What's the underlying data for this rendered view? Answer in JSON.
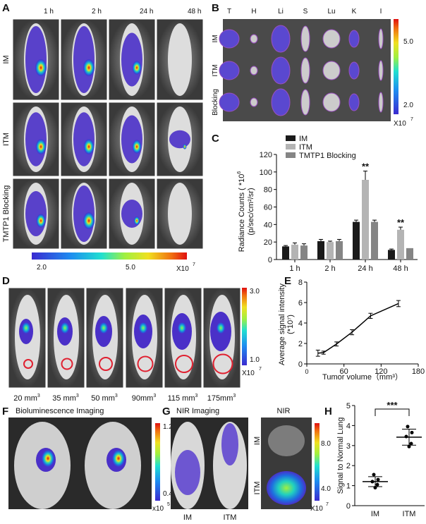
{
  "panels": {
    "A": {
      "label": "A",
      "columns": [
        "1 h",
        "2 h",
        "24 h",
        "48 h"
      ],
      "rows": [
        "IM",
        "ITM",
        "TMTP1 Blocking"
      ],
      "colorbar": {
        "min": "2.0",
        "max": "5.0",
        "unit": "X10",
        "exp": "7"
      }
    },
    "B": {
      "label": "B",
      "columns": [
        "T",
        "H",
        "Li",
        "S",
        "Lu",
        "K",
        "I"
      ],
      "rows": [
        "IM",
        "ITM",
        "Blocking"
      ],
      "colorbar": {
        "max": "5.0",
        "min": "2.0",
        "unit": "X10",
        "exp": "7"
      }
    },
    "D": {
      "label": "D",
      "volumes": [
        "20 mm",
        "35 mm",
        "50 mm",
        "90mm",
        "115 mm",
        "175mm"
      ],
      "exp": "3",
      "colorbar": {
        "max": "3.0",
        "min": "1.0",
        "unit": "X10",
        "exp": "7"
      }
    },
    "F": {
      "label": "F",
      "title": "Bioluminescence Imaging",
      "colorbar": {
        "max": "1.2",
        "min": "0.4",
        "unit": "x10",
        "exp": "5"
      }
    },
    "G": {
      "label": "G",
      "title": "NIR Imaging",
      "labels": [
        "IM",
        "ITM"
      ],
      "nir_title": "NIR",
      "nir_rows": [
        "IM",
        "ITM"
      ],
      "colorbar": {
        "max": "8.0",
        "min": "4.0",
        "unit": "X10",
        "exp": "7"
      }
    }
  },
  "colors": {
    "IM": "#1a1a1a",
    "ITM": "#b4b4b4",
    "TMTP1 Blocking": "#858585"
  },
  "chart_data": [
    {
      "panel": "C",
      "type": "bar",
      "label": "C",
      "ylabel": "Radiance Counts ( *10^6 (p/sec/cm²/sr)",
      "ylabel_line1": "Radiance Counts ( *10",
      "ylabel_exp": "6",
      "ylabel_line2": "(p/sec/cm²/sr)",
      "categories": [
        "1 h",
        "2 h",
        "24 h",
        "48 h"
      ],
      "ylim": [
        0,
        120
      ],
      "yticks": [
        0,
        20,
        40,
        60,
        80,
        100,
        120
      ],
      "series": [
        {
          "name": "IM",
          "values": [
            15,
            21,
            43,
            11
          ],
          "errors": [
            1,
            2,
            2,
            1
          ]
        },
        {
          "name": "ITM",
          "values": [
            17,
            20,
            91,
            34
          ],
          "errors": [
            2,
            1,
            10,
            3
          ]
        },
        {
          "name": "TMTP1 Blocking",
          "values": [
            16,
            21,
            43,
            13
          ],
          "errors": [
            2,
            2,
            2,
            0
          ]
        }
      ],
      "annotations": [
        {
          "category": "24 h",
          "text": "**"
        },
        {
          "category": "48 h",
          "text": "**"
        }
      ]
    },
    {
      "panel": "E",
      "type": "line",
      "label": "E",
      "xlabel": "Tumor volume（mm³）",
      "ylabel": "Average signal intensity",
      "ylabel2": "(*10⁷)",
      "x": [
        20,
        35,
        50,
        90,
        115,
        175
      ],
      "xplot": [
        18,
        27,
        48,
        73,
        103,
        148
      ],
      "y": [
        1.05,
        1.1,
        1.95,
        3.1,
        4.7,
        5.9
      ],
      "errors": [
        0.3,
        0.15,
        0.2,
        0.25,
        0.25,
        0.3
      ],
      "xlim": [
        0,
        180
      ],
      "ylim": [
        0,
        8
      ],
      "xticks": [
        0,
        60,
        120,
        180
      ],
      "yticks": [
        0,
        2,
        4,
        6,
        8
      ]
    },
    {
      "panel": "H",
      "type": "scatter",
      "label": "H",
      "ylabel": "Signal to Normal Lung",
      "categories": [
        "IM",
        "ITM"
      ],
      "ylim": [
        0,
        5
      ],
      "yticks": [
        0,
        1,
        2,
        3,
        4,
        5
      ],
      "points": [
        [
          1.55,
          1.3,
          1.2,
          1.05,
          0.9
        ],
        [
          3.95,
          3.65,
          3.45,
          3.1,
          2.95
        ]
      ],
      "means": [
        1.2,
        3.42
      ],
      "sd": [
        0.25,
        0.4
      ],
      "significance": "***"
    }
  ]
}
